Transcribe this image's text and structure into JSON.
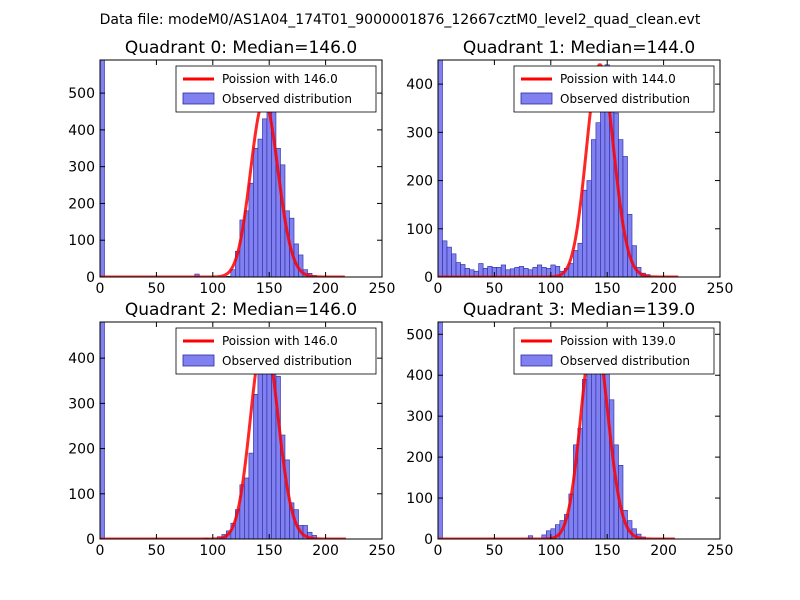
{
  "figure": {
    "suptitle": "Data file: modeM0/AS1A04_174T01_9000001876_12667cztM0_level2_quad_clean.evt"
  },
  "colors": {
    "bar_fill": "#8080f0",
    "bar_edge": "#2a2aa0",
    "poisson_line": "#ff0000",
    "axes": "#000000"
  },
  "chart_data": [
    {
      "type": "bar+line",
      "title": "Quadrant 0: Median=146.0",
      "xlim": [
        0,
        250
      ],
      "ylim": [
        0,
        590
      ],
      "xticks": [
        0,
        50,
        100,
        150,
        200,
        250
      ],
      "yticks": [
        0,
        100,
        200,
        300,
        400,
        500
      ],
      "legend": {
        "placement": "upper-right",
        "line_label": "Poission with 146.0",
        "bar_label": "Observed distribution"
      },
      "median": 146.0,
      "bin_width": 4,
      "bins": [
        [
          0,
          590
        ],
        [
          84,
          8
        ],
        [
          112,
          2
        ],
        [
          116,
          20
        ],
        [
          120,
          70
        ],
        [
          124,
          155
        ],
        [
          128,
          180
        ],
        [
          132,
          255
        ],
        [
          136,
          350
        ],
        [
          140,
          375
        ],
        [
          144,
          430
        ],
        [
          148,
          480
        ],
        [
          152,
          465
        ],
        [
          156,
          350
        ],
        [
          160,
          305
        ],
        [
          164,
          180
        ],
        [
          168,
          160
        ],
        [
          172,
          90
        ],
        [
          176,
          60
        ],
        [
          180,
          20
        ],
        [
          184,
          10
        ],
        [
          188,
          4
        ]
      ],
      "poisson": {
        "mean": 146.0,
        "x_range": [
          0,
          217
        ]
      }
    },
    {
      "type": "bar+line",
      "title": "Quadrant 1: Median=144.0",
      "xlim": [
        0,
        250
      ],
      "ylim": [
        0,
        450
      ],
      "xticks": [
        0,
        50,
        100,
        150,
        200,
        250
      ],
      "yticks": [
        0,
        100,
        200,
        300,
        400
      ],
      "legend": {
        "placement": "upper-right",
        "line_label": "Poission with 144.0",
        "bar_label": "Observed distribution"
      },
      "median": 144.0,
      "bin_width": 4,
      "bins": [
        [
          0,
          450
        ],
        [
          4,
          75
        ],
        [
          8,
          62
        ],
        [
          12,
          48
        ],
        [
          16,
          30
        ],
        [
          20,
          26
        ],
        [
          24,
          18
        ],
        [
          28,
          15
        ],
        [
          32,
          12
        ],
        [
          36,
          28
        ],
        [
          40,
          18
        ],
        [
          44,
          22
        ],
        [
          48,
          20
        ],
        [
          52,
          20
        ],
        [
          56,
          25
        ],
        [
          60,
          15
        ],
        [
          64,
          17
        ],
        [
          68,
          20
        ],
        [
          72,
          22
        ],
        [
          76,
          18
        ],
        [
          80,
          15
        ],
        [
          84,
          20
        ],
        [
          88,
          25
        ],
        [
          92,
          20
        ],
        [
          96,
          18
        ],
        [
          100,
          25
        ],
        [
          104,
          22
        ],
        [
          108,
          12
        ],
        [
          112,
          18
        ],
        [
          116,
          28
        ],
        [
          120,
          55
        ],
        [
          124,
          70
        ],
        [
          128,
          180
        ],
        [
          132,
          200
        ],
        [
          136,
          285
        ],
        [
          140,
          320
        ],
        [
          144,
          380
        ],
        [
          148,
          440
        ],
        [
          152,
          380
        ],
        [
          156,
          340
        ],
        [
          160,
          285
        ],
        [
          164,
          250
        ],
        [
          168,
          130
        ],
        [
          172,
          65
        ],
        [
          176,
          20
        ],
        [
          180,
          8
        ],
        [
          184,
          5
        ]
      ],
      "poisson": {
        "mean": 144.0,
        "x_range": [
          0,
          213
        ]
      }
    },
    {
      "type": "bar+line",
      "title": "Quadrant 2: Median=146.0",
      "xlim": [
        0,
        250
      ],
      "ylim": [
        0,
        480
      ],
      "xticks": [
        0,
        50,
        100,
        150,
        200,
        250
      ],
      "yticks": [
        0,
        100,
        200,
        300,
        400
      ],
      "legend": {
        "placement": "upper-right",
        "line_label": "Poission with 146.0",
        "bar_label": "Observed distribution"
      },
      "median": 146.0,
      "bin_width": 4,
      "bins": [
        [
          0,
          480
        ],
        [
          92,
          2
        ],
        [
          104,
          5
        ],
        [
          108,
          10
        ],
        [
          112,
          18
        ],
        [
          116,
          35
        ],
        [
          120,
          65
        ],
        [
          124,
          120
        ],
        [
          128,
          135
        ],
        [
          132,
          190
        ],
        [
          136,
          320
        ],
        [
          140,
          365
        ],
        [
          144,
          400
        ],
        [
          148,
          450
        ],
        [
          152,
          440
        ],
        [
          156,
          360
        ],
        [
          160,
          230
        ],
        [
          164,
          175
        ],
        [
          168,
          80
        ],
        [
          172,
          65
        ],
        [
          176,
          30
        ],
        [
          180,
          30
        ],
        [
          184,
          15
        ],
        [
          188,
          8
        ]
      ],
      "poisson": {
        "mean": 146.0,
        "x_range": [
          0,
          218
        ]
      }
    },
    {
      "type": "bar+line",
      "title": "Quadrant 3: Median=139.0",
      "xlim": [
        0,
        250
      ],
      "ylim": [
        0,
        530
      ],
      "xticks": [
        0,
        50,
        100,
        150,
        200,
        250
      ],
      "yticks": [
        0,
        100,
        200,
        300,
        400,
        500
      ],
      "legend": {
        "placement": "upper-right",
        "line_label": "Poission with 139.0",
        "bar_label": "Observed distribution"
      },
      "median": 139.0,
      "bin_width": 4,
      "bins": [
        [
          0,
          530
        ],
        [
          80,
          8
        ],
        [
          92,
          10
        ],
        [
          96,
          20
        ],
        [
          100,
          25
        ],
        [
          104,
          35
        ],
        [
          108,
          45
        ],
        [
          112,
          60
        ],
        [
          116,
          110
        ],
        [
          120,
          230
        ],
        [
          124,
          270
        ],
        [
          128,
          390
        ],
        [
          132,
          440
        ],
        [
          136,
          490
        ],
        [
          140,
          510
        ],
        [
          144,
          490
        ],
        [
          148,
          440
        ],
        [
          152,
          340
        ],
        [
          156,
          230
        ],
        [
          160,
          180
        ],
        [
          164,
          70
        ],
        [
          168,
          45
        ],
        [
          172,
          25
        ],
        [
          176,
          12
        ],
        [
          180,
          5
        ]
      ],
      "poisson": {
        "mean": 139.0,
        "x_range": [
          0,
          210
        ]
      }
    }
  ]
}
